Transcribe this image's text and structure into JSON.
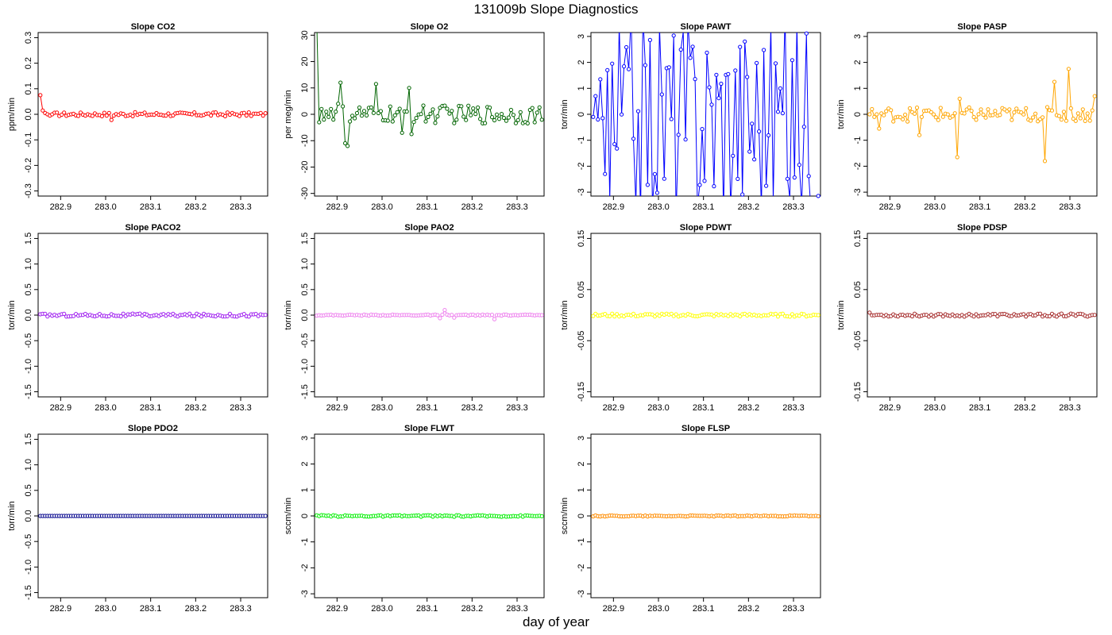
{
  "page": {
    "title": "131009b   Slope Diagnostics",
    "xlabel": "day of year"
  },
  "chart_data": [
    {
      "type": "line",
      "title": "Slope CO2",
      "ylabel": "ppm/min",
      "color": "#ff0000",
      "xlim": [
        282.85,
        283.36
      ],
      "ylim": [
        -0.32,
        0.32
      ],
      "yticks": [
        -0.3,
        -0.2,
        -0.1,
        0.0,
        0.1,
        0.2,
        0.3
      ],
      "ytick_labels": [
        "-0.3",
        "-0.2",
        "-0.1",
        "0.0",
        "0.1",
        "0.2",
        "0.3"
      ],
      "xticks": [
        282.9,
        283.0,
        283.1,
        283.2,
        283.3
      ],
      "xtick_labels": [
        "282.9",
        "283.0",
        "283.1",
        "283.2",
        "283.3"
      ],
      "n": 96,
      "amplitude": 0.008,
      "first": [
        0.075,
        0.015,
        0.005,
        0.0,
        -0.005,
        0.0
      ],
      "outliers": {
        "30": -0.022
      }
    },
    {
      "type": "line",
      "title": "Slope O2",
      "ylabel": "per meg/min",
      "color": "#006400",
      "xlim": [
        282.85,
        283.36
      ],
      "ylim": [
        -31,
        31
      ],
      "yticks": [
        -30,
        -20,
        -10,
        0,
        10,
        20,
        30
      ],
      "ytick_labels": [
        "-30",
        "-20",
        "-10",
        "0",
        "10",
        "20",
        "30"
      ],
      "xticks": [
        282.9,
        283.0,
        283.1,
        283.2,
        283.3
      ],
      "xtick_labels": [
        "282.9",
        "283.0",
        "283.1",
        "283.2",
        "283.3"
      ],
      "n": 96,
      "amplitude": 3.5,
      "first": [
        35,
        -3,
        2,
        -2,
        1,
        -1,
        2,
        -2,
        1,
        4,
        12,
        3,
        -11,
        -12
      ],
      "outliers": {
        "25": 11.5,
        "39": 10,
        "40": -7.5,
        "36": -7
      }
    },
    {
      "type": "line",
      "title": "Slope PAWT",
      "ylabel": "torr/min",
      "color": "#0000ff",
      "xlim": [
        282.85,
        283.36
      ],
      "ylim": [
        -3.15,
        3.15
      ],
      "yticks": [
        -3,
        -2,
        -1,
        0,
        1,
        2,
        3
      ],
      "ytick_labels": [
        "-3",
        "-2",
        "-1",
        "0",
        "1",
        "2",
        "3"
      ],
      "xticks": [
        282.9,
        283.0,
        283.1,
        283.2,
        283.3
      ],
      "xtick_labels": [
        "282.9",
        "283.0",
        "283.1",
        "283.2",
        "283.3"
      ],
      "n": 96,
      "amplitude": 4.0,
      "first": [
        -0.1,
        0.7,
        -0.2,
        1.35,
        -0.15,
        -2.3,
        1.7,
        -3.3,
        1.95,
        -1.15
      ],
      "outliers": {}
    },
    {
      "type": "line",
      "title": "Slope PASP",
      "ylabel": "torr/min",
      "color": "#ffa500",
      "xlim": [
        282.85,
        283.36
      ],
      "ylim": [
        -3.15,
        3.15
      ],
      "yticks": [
        -3,
        -2,
        -1,
        0,
        1,
        2,
        3
      ],
      "ytick_labels": [
        "-3",
        "-2",
        "-1",
        "0",
        "1",
        "2",
        "3"
      ],
      "xticks": [
        282.9,
        283.0,
        283.1,
        283.2,
        283.3
      ],
      "xtick_labels": [
        "282.9",
        "283.0",
        "283.1",
        "283.2",
        "283.3"
      ],
      "n": 96,
      "amplitude": 0.28,
      "first": [
        0.0,
        0.2,
        -0.1,
        0.0,
        -0.55
      ],
      "outliers": {
        "37": -1.65,
        "38": 0.6,
        "74": -1.8,
        "78": 1.25,
        "84": 1.75,
        "95": 0.7,
        "21": -0.8
      }
    },
    {
      "type": "line",
      "title": "Slope PACO2",
      "ylabel": "torr/min",
      "color": "#a020f0",
      "xlim": [
        282.85,
        283.36
      ],
      "ylim": [
        -1.6,
        1.6
      ],
      "yticks": [
        -1.5,
        -1.0,
        -0.5,
        0.0,
        0.5,
        1.0,
        1.5
      ],
      "ytick_labels": [
        "-1.5",
        "-1.0",
        "-0.5",
        "0.0",
        "0.5",
        "1.0",
        "1.5"
      ],
      "xticks": [
        282.9,
        283.0,
        283.1,
        283.2,
        283.3
      ],
      "xtick_labels": [
        "282.9",
        "283.0",
        "283.1",
        "283.2",
        "283.3"
      ],
      "n": 96,
      "amplitude": 0.03,
      "first": [],
      "outliers": {}
    },
    {
      "type": "line",
      "title": "Slope PAO2",
      "ylabel": "torr/min",
      "color": "#ee82ee",
      "xlim": [
        282.85,
        283.36
      ],
      "ylim": [
        -1.6,
        1.6
      ],
      "yticks": [
        -1.5,
        -1.0,
        -0.5,
        0.0,
        0.5,
        1.0,
        1.5
      ],
      "ytick_labels": [
        "-1.5",
        "-1.0",
        "-0.5",
        "0.0",
        "0.5",
        "1.0",
        "1.5"
      ],
      "xticks": [
        282.9,
        283.0,
        283.1,
        283.2,
        283.3
      ],
      "xtick_labels": [
        "282.9",
        "283.0",
        "283.1",
        "283.2",
        "283.3"
      ],
      "n": 96,
      "amplitude": 0.01,
      "first": [],
      "outliers": {
        "52": -0.06,
        "54": 0.1,
        "58": -0.05,
        "75": -0.08
      }
    },
    {
      "type": "line",
      "title": "Slope PDWT",
      "ylabel": "torr/min",
      "color": "#ffff00",
      "xlim": [
        282.85,
        283.36
      ],
      "ylim": [
        -0.16,
        0.16
      ],
      "yticks": [
        -0.15,
        -0.05,
        0.05,
        0.15
      ],
      "ytick_labels": [
        "-0.15",
        "-0.05",
        "0.05",
        "0.15"
      ],
      "xticks": [
        282.9,
        283.0,
        283.1,
        283.2,
        283.3
      ],
      "xtick_labels": [
        "282.9",
        "283.0",
        "283.1",
        "283.2",
        "283.3"
      ],
      "n": 96,
      "amplitude": 0.003,
      "first": [],
      "outliers": {}
    },
    {
      "type": "line",
      "title": "Slope PDSP",
      "ylabel": "torr/min",
      "color": "#a52a2a",
      "xlim": [
        282.85,
        283.36
      ],
      "ylim": [
        -0.16,
        0.16
      ],
      "yticks": [
        -0.15,
        -0.05,
        0.05,
        0.15
      ],
      "ytick_labels": [
        "-0.15",
        "-0.05",
        "0.05",
        "0.15"
      ],
      "xticks": [
        282.9,
        283.0,
        283.1,
        283.2,
        283.3
      ],
      "xtick_labels": [
        "282.9",
        "283.0",
        "283.1",
        "283.2",
        "283.3"
      ],
      "n": 96,
      "amplitude": 0.003,
      "first": [
        0.005
      ],
      "outliers": {}
    },
    {
      "type": "line",
      "title": "Slope PDO2",
      "ylabel": "torr/min",
      "color": "#00008b",
      "xlim": [
        282.85,
        283.36
      ],
      "ylim": [
        -1.6,
        1.6
      ],
      "yticks": [
        -1.5,
        -1.0,
        -0.5,
        0.0,
        0.5,
        1.0,
        1.5
      ],
      "ytick_labels": [
        "-1.5",
        "-1.0",
        "-0.5",
        "0.0",
        "0.5",
        "1.0",
        "1.5"
      ],
      "xticks": [
        282.9,
        283.0,
        283.1,
        283.2,
        283.3
      ],
      "xtick_labels": [
        "282.9",
        "283.0",
        "283.1",
        "283.2",
        "283.3"
      ],
      "n": 96,
      "amplitude": 0.0,
      "first": [],
      "outliers": {}
    },
    {
      "type": "line",
      "title": "Slope FLWT",
      "ylabel": "sccm/min",
      "color": "#00ee00",
      "xlim": [
        282.85,
        283.36
      ],
      "ylim": [
        -3.15,
        3.15
      ],
      "yticks": [
        -3,
        -2,
        -1,
        0,
        1,
        2,
        3
      ],
      "ytick_labels": [
        "-3",
        "-2",
        "-1",
        "0",
        "1",
        "2",
        "3"
      ],
      "xticks": [
        282.9,
        283.0,
        283.1,
        283.2,
        283.3
      ],
      "xtick_labels": [
        "282.9",
        "283.0",
        "283.1",
        "283.2",
        "283.3"
      ],
      "n": 96,
      "amplitude": 0.03,
      "first": [],
      "outliers": {}
    },
    {
      "type": "line",
      "title": "Slope FLSP",
      "ylabel": "sccm/min",
      "color": "#ff8c00",
      "xlim": [
        282.85,
        283.36
      ],
      "ylim": [
        -3.15,
        3.15
      ],
      "yticks": [
        -3,
        -2,
        -1,
        0,
        1,
        2,
        3
      ],
      "ytick_labels": [
        "-3",
        "-2",
        "-1",
        "0",
        "1",
        "2",
        "3"
      ],
      "xticks": [
        282.9,
        283.0,
        283.1,
        283.2,
        283.3
      ],
      "xtick_labels": [
        "282.9",
        "283.0",
        "283.1",
        "283.2",
        "283.3"
      ],
      "n": 96,
      "amplitude": 0.02,
      "first": [],
      "outliers": {}
    }
  ]
}
